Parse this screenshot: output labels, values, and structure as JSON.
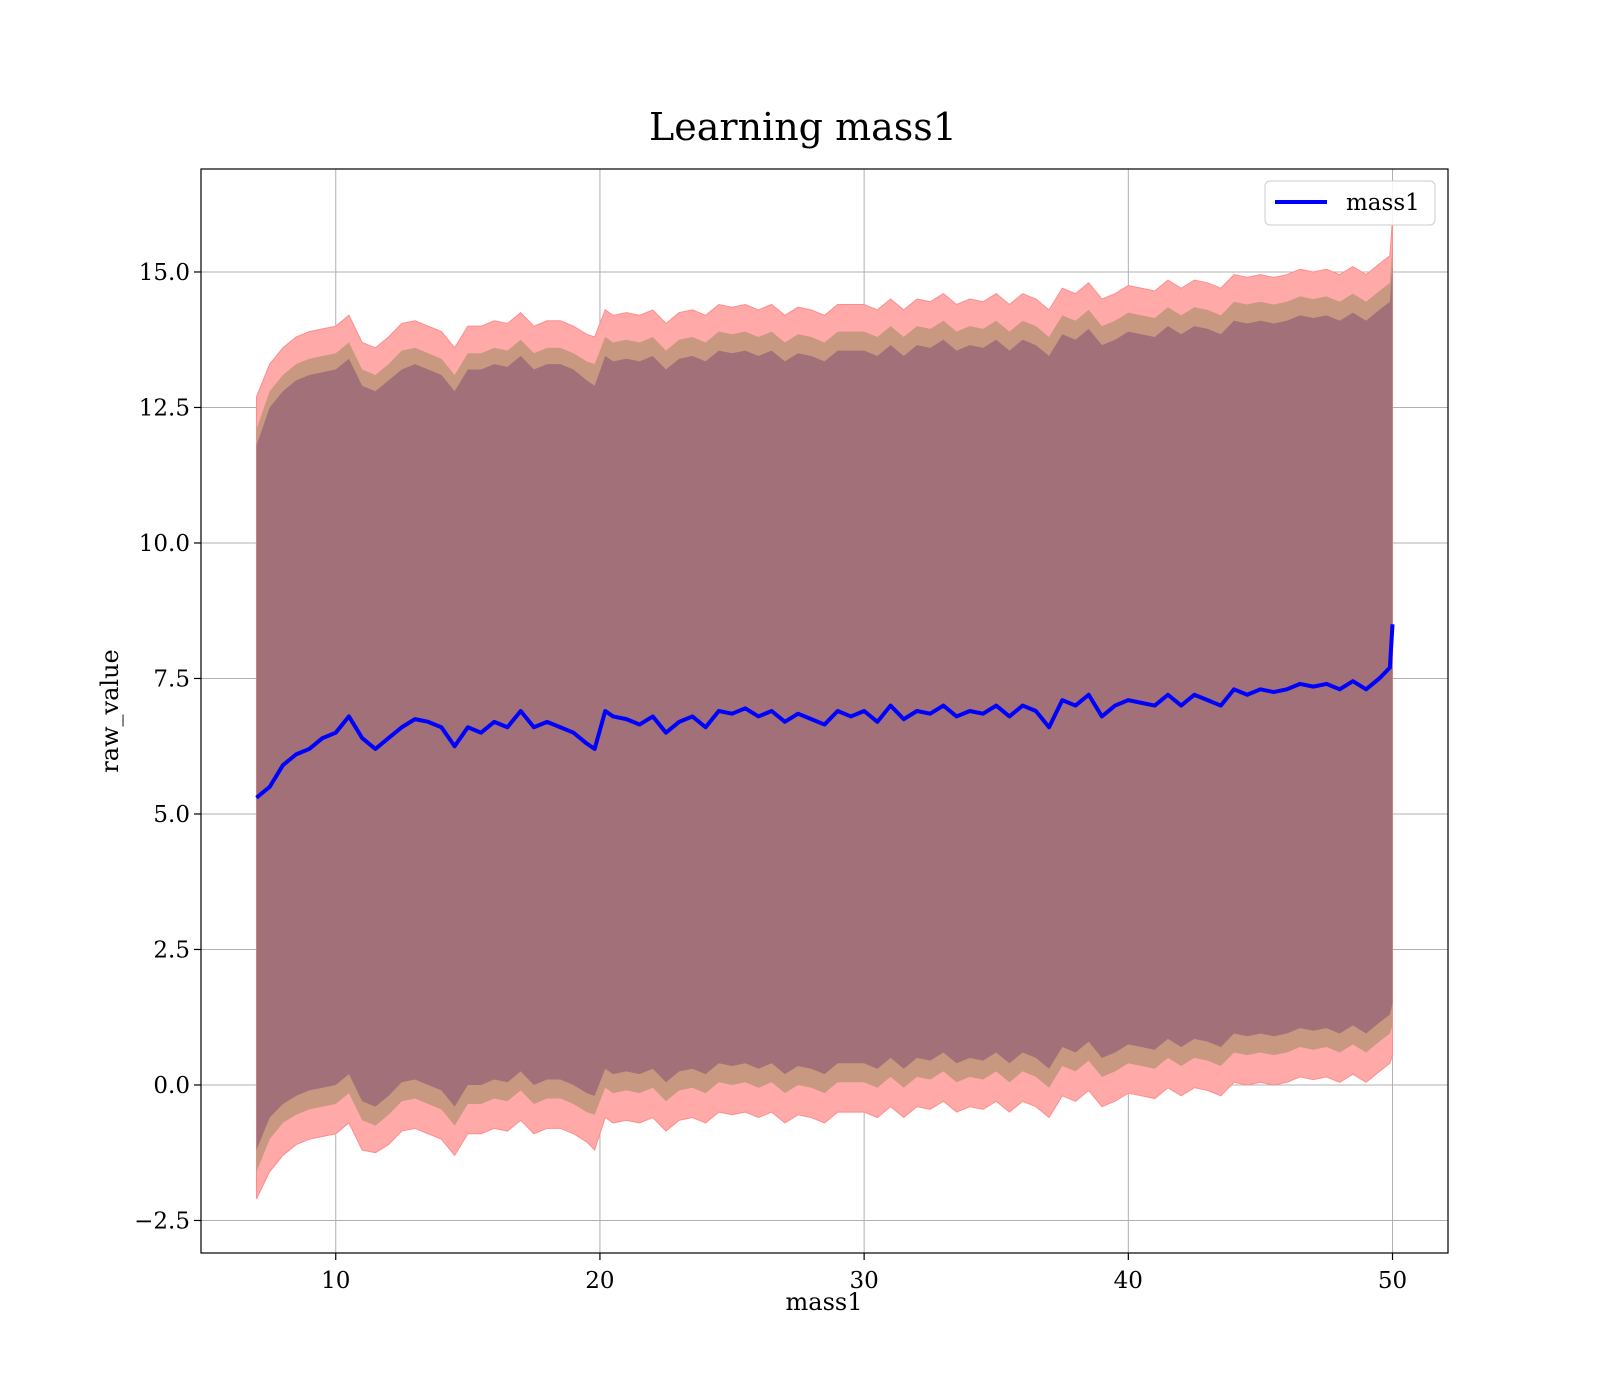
{
  "chart_data": {
    "type": "line",
    "title": "Learning mass1",
    "xlabel": "mass1",
    "ylabel": "raw_value",
    "xlim": [
      4.9,
      52.1
    ],
    "ylim": [
      -3.1,
      16.9
    ],
    "xticks": [
      10,
      20,
      30,
      40,
      50
    ],
    "xtick_labels": [
      "10",
      "20",
      "30",
      "40",
      "50"
    ],
    "yticks": [
      -2.5,
      0.0,
      2.5,
      5.0,
      7.5,
      10.0,
      12.5,
      15.0
    ],
    "ytick_labels": [
      "−2.5",
      "0.0",
      "2.5",
      "5.0",
      "7.5",
      "10.0",
      "12.5",
      "15.0"
    ],
    "grid": true,
    "legend": {
      "position": "top-right",
      "entries": [
        "mass1"
      ]
    },
    "series": [
      {
        "name": "mass1",
        "color": "#0000ff",
        "x": [
          7.0,
          7.5,
          8.0,
          8.5,
          9.0,
          9.5,
          10.0,
          10.5,
          11.0,
          11.5,
          12.0,
          12.5,
          13.0,
          13.5,
          14.0,
          14.5,
          15.0,
          15.5,
          16.0,
          16.5,
          17.0,
          17.5,
          18.0,
          18.5,
          19.0,
          19.5,
          19.8,
          20.2,
          20.5,
          21.0,
          21.5,
          22.0,
          22.5,
          23.0,
          23.5,
          24.0,
          24.5,
          25.0,
          25.5,
          26.0,
          26.5,
          27.0,
          27.5,
          28.0,
          28.5,
          29.0,
          29.5,
          30.0,
          30.5,
          31.0,
          31.5,
          32.0,
          32.5,
          33.0,
          33.5,
          34.0,
          34.5,
          35.0,
          35.5,
          36.0,
          36.5,
          37.0,
          37.5,
          38.0,
          38.5,
          39.0,
          39.5,
          40.0,
          40.5,
          41.0,
          41.5,
          42.0,
          42.5,
          43.0,
          43.5,
          44.0,
          44.5,
          45.0,
          45.5,
          46.0,
          46.5,
          47.0,
          47.5,
          48.0,
          48.5,
          49.0,
          49.5,
          49.9,
          50.0
        ],
        "y": [
          5.3,
          5.5,
          5.9,
          6.1,
          6.2,
          6.4,
          6.5,
          6.8,
          6.4,
          6.2,
          6.4,
          6.6,
          6.75,
          6.7,
          6.6,
          6.25,
          6.6,
          6.5,
          6.7,
          6.6,
          6.9,
          6.6,
          6.7,
          6.6,
          6.5,
          6.3,
          6.2,
          6.9,
          6.8,
          6.75,
          6.65,
          6.8,
          6.5,
          6.7,
          6.8,
          6.6,
          6.9,
          6.85,
          6.95,
          6.8,
          6.9,
          6.7,
          6.85,
          6.75,
          6.65,
          6.9,
          6.8,
          6.9,
          6.7,
          7.0,
          6.75,
          6.9,
          6.85,
          7.0,
          6.8,
          6.9,
          6.85,
          7.0,
          6.8,
          7.0,
          6.9,
          6.6,
          7.1,
          7.0,
          7.2,
          6.8,
          7.0,
          7.1,
          7.05,
          7.0,
          7.2,
          7.0,
          7.2,
          7.1,
          7.0,
          7.3,
          7.2,
          7.3,
          7.25,
          7.3,
          7.4,
          7.35,
          7.4,
          7.3,
          7.45,
          7.3,
          7.5,
          7.7,
          8.5
        ],
        "upper_outer": [
          12.7,
          13.3,
          13.6,
          13.8,
          13.9,
          13.95,
          14.0,
          14.2,
          13.7,
          13.6,
          13.8,
          14.05,
          14.1,
          14.0,
          13.9,
          13.6,
          14.0,
          14.0,
          14.1,
          14.05,
          14.25,
          14.0,
          14.1,
          14.1,
          14.0,
          13.85,
          13.8,
          14.3,
          14.2,
          14.25,
          14.2,
          14.3,
          14.05,
          14.25,
          14.3,
          14.2,
          14.4,
          14.35,
          14.4,
          14.3,
          14.4,
          14.2,
          14.35,
          14.3,
          14.2,
          14.4,
          14.4,
          14.4,
          14.3,
          14.5,
          14.3,
          14.5,
          14.45,
          14.6,
          14.4,
          14.5,
          14.45,
          14.6,
          14.4,
          14.6,
          14.5,
          14.3,
          14.7,
          14.6,
          14.8,
          14.5,
          14.6,
          14.75,
          14.7,
          14.65,
          14.85,
          14.7,
          14.85,
          14.8,
          14.7,
          14.95,
          14.9,
          14.95,
          14.9,
          14.95,
          15.05,
          15.0,
          15.05,
          14.95,
          15.1,
          14.95,
          15.15,
          15.3,
          16.0
        ],
        "upper_inner": [
          12.1,
          12.8,
          13.1,
          13.3,
          13.4,
          13.45,
          13.5,
          13.7,
          13.2,
          13.1,
          13.3,
          13.55,
          13.6,
          13.5,
          13.4,
          13.1,
          13.5,
          13.5,
          13.6,
          13.55,
          13.75,
          13.5,
          13.6,
          13.6,
          13.5,
          13.35,
          13.3,
          13.8,
          13.7,
          13.75,
          13.7,
          13.8,
          13.55,
          13.75,
          13.8,
          13.7,
          13.9,
          13.85,
          13.9,
          13.8,
          13.9,
          13.7,
          13.85,
          13.8,
          13.7,
          13.9,
          13.9,
          13.9,
          13.8,
          14.0,
          13.8,
          14.0,
          13.95,
          14.1,
          13.9,
          14.0,
          13.95,
          14.1,
          13.9,
          14.1,
          14.0,
          13.8,
          14.2,
          14.1,
          14.3,
          14.0,
          14.1,
          14.25,
          14.2,
          14.15,
          14.35,
          14.2,
          14.35,
          14.3,
          14.2,
          14.45,
          14.4,
          14.45,
          14.4,
          14.45,
          14.55,
          14.5,
          14.55,
          14.45,
          14.6,
          14.45,
          14.65,
          14.8,
          15.5
        ],
        "upper_core": [
          11.8,
          12.5,
          12.8,
          13.0,
          13.1,
          13.15,
          13.2,
          13.4,
          12.9,
          12.8,
          13.0,
          13.2,
          13.3,
          13.2,
          13.1,
          12.8,
          13.2,
          13.2,
          13.3,
          13.25,
          13.45,
          13.2,
          13.3,
          13.3,
          13.2,
          13.0,
          12.9,
          13.45,
          13.35,
          13.4,
          13.35,
          13.45,
          13.2,
          13.4,
          13.45,
          13.35,
          13.55,
          13.5,
          13.55,
          13.45,
          13.55,
          13.35,
          13.5,
          13.45,
          13.35,
          13.55,
          13.55,
          13.55,
          13.45,
          13.65,
          13.45,
          13.65,
          13.6,
          13.75,
          13.55,
          13.65,
          13.6,
          13.75,
          13.55,
          13.75,
          13.65,
          13.45,
          13.85,
          13.75,
          13.95,
          13.65,
          13.75,
          13.9,
          13.85,
          13.8,
          14.0,
          13.85,
          14.0,
          13.95,
          13.85,
          14.1,
          14.05,
          14.1,
          14.05,
          14.1,
          14.2,
          14.15,
          14.2,
          14.1,
          14.25,
          14.1,
          14.3,
          14.45,
          15.1
        ],
        "lower_core": [
          -1.2,
          -0.6,
          -0.35,
          -0.2,
          -0.1,
          -0.05,
          0.0,
          0.2,
          -0.3,
          -0.4,
          -0.2,
          0.05,
          0.1,
          0.0,
          -0.1,
          -0.4,
          0.0,
          0.0,
          0.1,
          0.05,
          0.25,
          0.0,
          0.1,
          0.1,
          0.0,
          -0.15,
          -0.2,
          0.3,
          0.2,
          0.25,
          0.2,
          0.3,
          0.05,
          0.25,
          0.3,
          0.2,
          0.4,
          0.35,
          0.4,
          0.3,
          0.4,
          0.2,
          0.35,
          0.3,
          0.2,
          0.4,
          0.4,
          0.4,
          0.3,
          0.5,
          0.3,
          0.5,
          0.45,
          0.6,
          0.4,
          0.5,
          0.45,
          0.6,
          0.4,
          0.6,
          0.5,
          0.3,
          0.7,
          0.6,
          0.8,
          0.5,
          0.6,
          0.75,
          0.7,
          0.65,
          0.85,
          0.7,
          0.85,
          0.8,
          0.7,
          0.95,
          0.9,
          0.95,
          0.9,
          0.95,
          1.05,
          1.0,
          1.05,
          0.95,
          1.1,
          0.95,
          1.15,
          1.3,
          1.5
        ],
        "lower_inner": [
          -1.6,
          -1.0,
          -0.7,
          -0.55,
          -0.45,
          -0.4,
          -0.35,
          -0.15,
          -0.65,
          -0.75,
          -0.55,
          -0.3,
          -0.25,
          -0.35,
          -0.45,
          -0.75,
          -0.35,
          -0.35,
          -0.25,
          -0.3,
          -0.1,
          -0.35,
          -0.25,
          -0.25,
          -0.35,
          -0.5,
          -0.55,
          -0.05,
          -0.15,
          -0.1,
          -0.15,
          -0.05,
          -0.3,
          -0.1,
          -0.05,
          -0.15,
          0.05,
          0.0,
          0.05,
          -0.05,
          0.05,
          -0.15,
          0.0,
          -0.05,
          -0.15,
          0.05,
          0.05,
          0.05,
          -0.05,
          0.15,
          -0.05,
          0.15,
          0.1,
          0.25,
          0.05,
          0.15,
          0.1,
          0.25,
          0.05,
          0.25,
          0.15,
          -0.05,
          0.35,
          0.25,
          0.45,
          0.15,
          0.25,
          0.4,
          0.35,
          0.3,
          0.5,
          0.35,
          0.5,
          0.45,
          0.35,
          0.6,
          0.55,
          0.6,
          0.55,
          0.6,
          0.7,
          0.65,
          0.7,
          0.6,
          0.75,
          0.6,
          0.8,
          0.95,
          1.1
        ],
        "lower_outer": [
          -2.1,
          -1.6,
          -1.3,
          -1.1,
          -1.0,
          -0.95,
          -0.9,
          -0.7,
          -1.2,
          -1.25,
          -1.1,
          -0.85,
          -0.8,
          -0.9,
          -1.0,
          -1.3,
          -0.9,
          -0.9,
          -0.8,
          -0.85,
          -0.65,
          -0.9,
          -0.8,
          -0.8,
          -0.9,
          -1.05,
          -1.2,
          -0.6,
          -0.7,
          -0.65,
          -0.7,
          -0.6,
          -0.85,
          -0.65,
          -0.6,
          -0.7,
          -0.5,
          -0.55,
          -0.5,
          -0.6,
          -0.5,
          -0.7,
          -0.55,
          -0.6,
          -0.7,
          -0.5,
          -0.5,
          -0.5,
          -0.6,
          -0.4,
          -0.6,
          -0.4,
          -0.45,
          -0.3,
          -0.5,
          -0.4,
          -0.45,
          -0.3,
          -0.5,
          -0.3,
          -0.4,
          -0.6,
          -0.2,
          -0.3,
          -0.1,
          -0.4,
          -0.3,
          -0.15,
          -0.2,
          -0.25,
          -0.05,
          -0.2,
          -0.05,
          -0.1,
          -0.2,
          0.05,
          0.0,
          0.05,
          0.0,
          0.05,
          0.15,
          0.1,
          0.15,
          0.05,
          0.2,
          0.05,
          0.25,
          0.4,
          0.55
        ]
      }
    ],
    "band_colors": {
      "outer": "#ffa9a9",
      "middle": "#c89880",
      "core": "#a27078",
      "outer_edge": "#ff8c8c"
    }
  }
}
